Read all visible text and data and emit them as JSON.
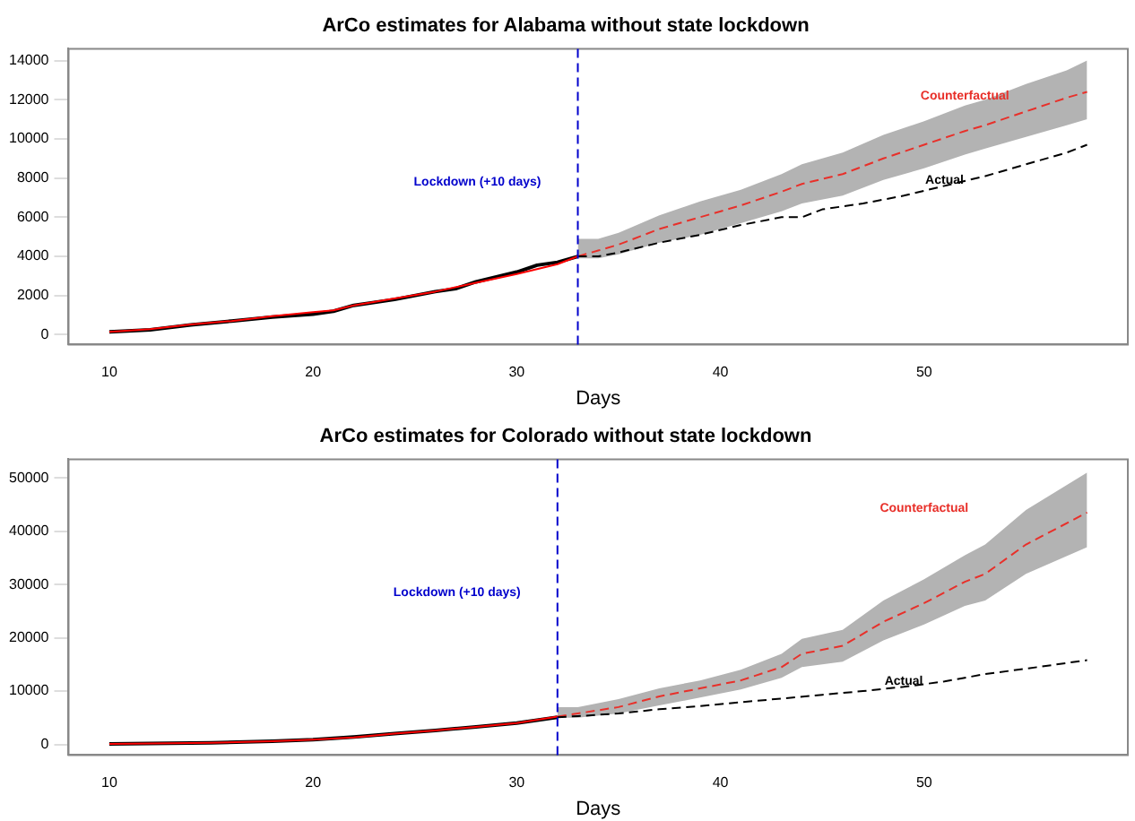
{
  "chart_data": [
    {
      "type": "line",
      "title": "ArCo estimates for Alabama without state lockdown",
      "xlabel": "Days",
      "xlim": [
        8,
        60
      ],
      "xticks": [
        10,
        20,
        30,
        40,
        50
      ],
      "ylim": [
        -500,
        14600
      ],
      "yticks": [
        0,
        2000,
        4000,
        6000,
        8000,
        10000,
        12000,
        14000
      ],
      "grid": false,
      "legend": false,
      "marker": "none",
      "ref_lines": [
        {
          "axis": "x",
          "value": 33,
          "label": "Lockdown (+10 days)",
          "color": "#0000cc",
          "line_style": "dashed"
        }
      ],
      "series": [
        {
          "color": "#000000",
          "line_style": "solid",
          "x": [
            10,
            12,
            14,
            16,
            18,
            20,
            21,
            22,
            24,
            26,
            27,
            28,
            30,
            31,
            32,
            33
          ],
          "values": [
            150,
            250,
            500,
            700,
            900,
            1050,
            1200,
            1500,
            1800,
            2200,
            2350,
            2700,
            3200,
            3550,
            3700,
            4000
          ]
        },
        {
          "color": "#ff0000",
          "line_style": "solid",
          "x": [
            10,
            12,
            14,
            16,
            18,
            20,
            21,
            22,
            24,
            26,
            28,
            30,
            32,
            33
          ],
          "values": [
            150,
            280,
            520,
            700,
            950,
            1150,
            1250,
            1500,
            1850,
            2200,
            2650,
            3100,
            3600,
            4000
          ]
        },
        {
          "name": "Counterfactual",
          "color": "#e8302a",
          "line_style": "dashed",
          "x": [
            33,
            34,
            35,
            37,
            39,
            41,
            43,
            44,
            46,
            48,
            50,
            52,
            53,
            55,
            57,
            58
          ],
          "values": [
            4000,
            4300,
            4600,
            5400,
            6000,
            6600,
            7300,
            7700,
            8200,
            9000,
            9700,
            10400,
            10700,
            11400,
            12100,
            12400
          ],
          "upper": [
            4900,
            4900,
            5200,
            6100,
            6800,
            7400,
            8200,
            8700,
            9300,
            10200,
            10900,
            11700,
            12000,
            12800,
            13500,
            14000
          ],
          "lower": [
            3900,
            3900,
            4100,
            4700,
            5100,
            5700,
            6300,
            6700,
            7100,
            7900,
            8500,
            9200,
            9500,
            10100,
            10700,
            11000
          ]
        },
        {
          "name": "Actual",
          "color": "#000000",
          "line_style": "dashed",
          "x": [
            33,
            34,
            35,
            37,
            39,
            41,
            43,
            44,
            45,
            47,
            49,
            51,
            53,
            55,
            57,
            58
          ],
          "values": [
            4000,
            4000,
            4200,
            4700,
            5100,
            5600,
            6000,
            6000,
            6400,
            6700,
            7100,
            7600,
            8100,
            8700,
            9300,
            9700
          ]
        }
      ]
    },
    {
      "type": "line",
      "title": "ArCo estimates for Colorado without state lockdown",
      "xlabel": "Days",
      "xlim": [
        8,
        60
      ],
      "xticks": [
        10,
        20,
        30,
        40,
        50
      ],
      "ylim": [
        -2000,
        53500
      ],
      "yticks": [
        0,
        10000,
        20000,
        30000,
        40000,
        50000
      ],
      "grid": false,
      "legend": false,
      "marker": "none",
      "ref_lines": [
        {
          "axis": "x",
          "value": 32,
          "label": "Lockdown (+10 days)",
          "color": "#0000cc",
          "line_style": "dashed"
        }
      ],
      "series": [
        {
          "color": "#000000",
          "line_style": "solid",
          "x": [
            10,
            15,
            18,
            20,
            22,
            24,
            26,
            28,
            30,
            32
          ],
          "values": [
            100,
            300,
            600,
            900,
            1400,
            2000,
            2600,
            3300,
            4000,
            5100
          ]
        },
        {
          "color": "#ff0000",
          "line_style": "solid",
          "x": [
            10,
            15,
            18,
            20,
            22,
            24,
            26,
            28,
            30,
            32
          ],
          "values": [
            100,
            300,
            600,
            900,
            1300,
            2000,
            2600,
            3300,
            4000,
            5200
          ]
        },
        {
          "name": "Counterfactual",
          "color": "#e8302a",
          "line_style": "dashed",
          "x": [
            32,
            33,
            35,
            37,
            39,
            41,
            43,
            44,
            46,
            48,
            50,
            52,
            53,
            55,
            58
          ],
          "values": [
            5200,
            5800,
            7000,
            9000,
            10500,
            12000,
            14500,
            17000,
            18500,
            23000,
            26500,
            30500,
            32000,
            37500,
            43500
          ],
          "upper": [
            7000,
            7000,
            8500,
            10500,
            12000,
            14000,
            17000,
            19800,
            21500,
            27000,
            31000,
            35500,
            37500,
            44000,
            51000
          ],
          "lower": [
            5000,
            5000,
            5800,
            7300,
            8800,
            10300,
            12500,
            14500,
            15500,
            19500,
            22500,
            26000,
            27000,
            32000,
            37000
          ]
        },
        {
          "name": "Actual",
          "color": "#000000",
          "line_style": "dashed",
          "x": [
            32,
            33,
            35,
            37,
            39,
            41,
            43,
            45,
            47,
            49,
            51,
            53,
            55,
            58
          ],
          "values": [
            5100,
            5300,
            5800,
            6600,
            7200,
            7900,
            8600,
            9300,
            10000,
            10800,
            11800,
            13200,
            14200,
            15800
          ]
        }
      ]
    }
  ]
}
